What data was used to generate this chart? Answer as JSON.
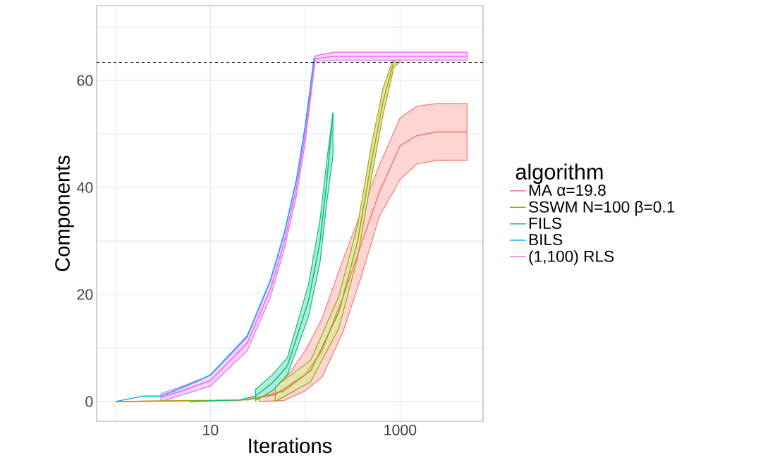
{
  "chart_data": {
    "type": "line",
    "xlabel": "Iterations",
    "ylabel": "Components",
    "legend_title": "algorithm",
    "log": "x",
    "grid": true,
    "legend": "right",
    "xlim": [
      0.63,
      7500
    ],
    "ylim": [
      -3.7,
      74
    ],
    "xticks": [
      {
        "value": 1,
        "label": null
      },
      10,
      {
        "value": 100,
        "label": null
      },
      1000
    ],
    "yticks": [
      0,
      {
        "value": 10,
        "label": null
      },
      20,
      {
        "value": 30,
        "label": null
      },
      40,
      {
        "value": 50,
        "label": null
      },
      60,
      {
        "value": 70,
        "label": null
      }
    ],
    "ref_lines": [
      {
        "axis": "y",
        "value": 63.4,
        "color": "#000000",
        "line_style": "dashed"
      }
    ],
    "series": [
      {
        "name": "MA α=19.8",
        "color": "#f8766d",
        "x": [
          1,
          20,
          32.7,
          60,
          100,
          150,
          250,
          400,
          600,
          1000,
          1500,
          2500,
          5080
        ],
        "values": [
          0,
          0.2,
          0.8,
          2,
          5,
          9.5,
          19.5,
          30,
          39,
          47.8,
          49.7,
          50.4,
          50.4
        ],
        "lower": [
          null,
          null,
          0,
          0.2,
          2,
          4.5,
          13,
          24,
          34.5,
          41.5,
          44.4,
          45.1,
          45.1
        ],
        "upper": [
          null,
          null,
          1.8,
          4,
          9.5,
          15.5,
          26.5,
          36,
          44,
          53,
          55.2,
          55.7,
          55.7
        ]
      },
      {
        "name": "SSWM N=100 β=0.1",
        "color": "#a3a500",
        "x": [
          1,
          25,
          48.3,
          114,
          226,
          356,
          500,
          660,
          860,
          1000
        ],
        "values": [
          0,
          0.3,
          1.3,
          5.7,
          16.7,
          29.9,
          45,
          56,
          63.6,
          null
        ],
        "lower": [
          null,
          null,
          0,
          3.7,
          13.7,
          26.9,
          42,
          53.5,
          62.5,
          63.5
        ],
        "upper": [
          null,
          null,
          2.8,
          7.7,
          19.7,
          32.9,
          48,
          58.5,
          64.5,
          65
        ]
      },
      {
        "name": "FILS",
        "color": "#00bf7d",
        "x": [
          6,
          20,
          29.9,
          45,
          64.7,
          108,
          143,
          168,
          196
        ],
        "values": [
          0,
          0.3,
          1,
          3.5,
          6.6,
          18.8,
          29.9,
          40.8,
          54
        ],
        "lower": [
          null,
          null,
          0.2,
          2,
          5,
          15.8,
          26,
          37,
          46
        ],
        "upper": [
          null,
          null,
          2.3,
          5,
          8.2,
          21.8,
          33.9,
          44.8,
          54
        ]
      },
      {
        "name": "BILS",
        "color": "#00b0f6",
        "x": [
          1,
          1.97,
          3.0,
          4.17,
          7.7,
          10,
          24.4,
          42.9,
          60,
          80.7,
          100,
          124
        ],
        "values": [
          0,
          1,
          1,
          2,
          4,
          5,
          12.3,
          22.7,
          31.5,
          41.5,
          51.6,
          64.3
        ]
      },
      {
        "name": "(1,100) RLS",
        "color": "#e76bf3",
        "x": [
          3.0,
          5,
          10,
          24.4,
          42.9,
          60,
          80.7,
          100,
          127,
          200,
          500,
          1000,
          2000,
          5080
        ],
        "values": [
          0.7,
          2,
          3.9,
          10.9,
          21,
          29.9,
          39.9,
          50,
          64.1,
          64.5,
          64.5,
          64.5,
          64.5,
          64.5
        ],
        "lower": [
          0,
          1.2,
          2.9,
          9.5,
          19.5,
          28.5,
          38.5,
          48.5,
          63.6,
          63.8,
          63.8,
          63.8,
          63.8,
          63.8
        ],
        "upper": [
          1.5,
          2.8,
          4.9,
          12,
          22.5,
          31.3,
          41.3,
          51.5,
          64.6,
          65.3,
          65.3,
          65.3,
          65.3,
          65.3
        ]
      }
    ]
  }
}
